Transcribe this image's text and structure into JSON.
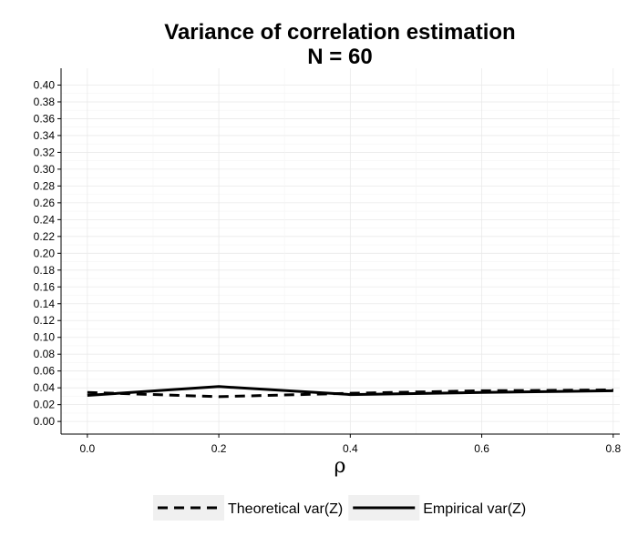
{
  "chart_data": {
    "type": "line",
    "title": "Variance of correlation estimation",
    "subtitle": "N = 60",
    "xlabel": "ρ",
    "ylabel": "",
    "xlim": [
      -0.04,
      0.81
    ],
    "ylim": [
      -0.015,
      0.42
    ],
    "x_ticks": [
      0.0,
      0.2,
      0.4,
      0.6,
      0.8
    ],
    "x_tick_labels": [
      "0.0",
      "0.2",
      "0.4",
      "0.6",
      "0.8"
    ],
    "y_ticks": [
      0.0,
      0.02,
      0.04,
      0.06,
      0.08,
      0.1,
      0.12,
      0.14,
      0.16,
      0.18,
      0.2,
      0.22,
      0.24,
      0.26,
      0.28,
      0.3,
      0.32,
      0.34,
      0.36,
      0.38,
      0.4
    ],
    "y_tick_labels": [
      "0.00",
      "0.02",
      "0.04",
      "0.06",
      "0.08",
      "0.10",
      "0.12",
      "0.14",
      "0.16",
      "0.18",
      "0.20",
      "0.22",
      "0.24",
      "0.26",
      "0.28",
      "0.30",
      "0.32",
      "0.34",
      "0.36",
      "0.38",
      "0.40"
    ],
    "grid": true,
    "legend_position": "bottom",
    "series": [
      {
        "name": "Theoretical var(Z)",
        "line_style": "dashed",
        "color": "#000000",
        "x": [
          0.0,
          0.2,
          0.4,
          0.6,
          0.8
        ],
        "y": [
          0.0345,
          0.0295,
          0.0335,
          0.0365,
          0.0375
        ]
      },
      {
        "name": "Empirical var(Z)",
        "line_style": "solid",
        "color": "#000000",
        "x": [
          0.0,
          0.2,
          0.4,
          0.6,
          0.8
        ],
        "y": [
          0.031,
          0.0415,
          0.032,
          0.0345,
          0.0365
        ]
      }
    ]
  }
}
